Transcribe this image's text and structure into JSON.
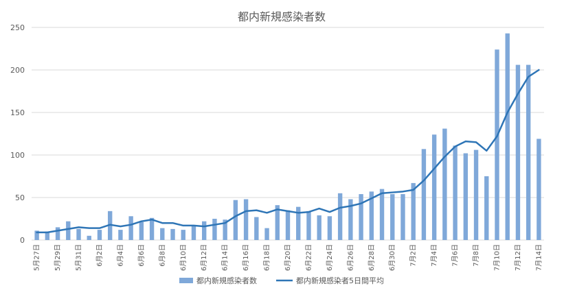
{
  "chart_data": {
    "type": "bar+line",
    "title": "都内新規感染者数",
    "ylim": [
      0,
      250
    ],
    "y_ticks": [
      0,
      50,
      100,
      150,
      200,
      250
    ],
    "grid": true,
    "legend_position": "bottom",
    "categories": [
      "5月27日",
      "5月28日",
      "5月29日",
      "5月30日",
      "5月31日",
      "6月1日",
      "6月2日",
      "6月3日",
      "6月4日",
      "6月5日",
      "6月6日",
      "6月7日",
      "6月8日",
      "6月9日",
      "6月10日",
      "6月11日",
      "6月12日",
      "6月13日",
      "6月14日",
      "6月15日",
      "6月16日",
      "6月17日",
      "6月18日",
      "6月19日",
      "6月20日",
      "6月21日",
      "6月22日",
      "6月23日",
      "6月24日",
      "6月25日",
      "6月26日",
      "6月27日",
      "6月28日",
      "6月29日",
      "6月30日",
      "7月1日",
      "7月2日",
      "7月3日",
      "7月4日",
      "7月5日",
      "7月6日",
      "7月7日",
      "7月8日",
      "7月9日",
      "7月10日",
      "7月11日",
      "7月12日",
      "7月13日",
      "7月14日"
    ],
    "x_tick_labels": [
      "5月27日",
      "5月29日",
      "5月31日",
      "6月2日",
      "6月4日",
      "6月6日",
      "6月8日",
      "6月10日",
      "6月12日",
      "6月14日",
      "6月16日",
      "6月18日",
      "6月20日",
      "6月22日",
      "6月24日",
      "6月26日",
      "6月28日",
      "6月30日",
      "7月2日",
      "7月4日",
      "7月6日",
      "7月8日",
      "7月10日",
      "7月12日",
      "7月14日"
    ],
    "series": [
      {
        "name": "都内新規感染者数",
        "kind": "bar",
        "color": "#7fa8d9",
        "values": [
          11,
          10,
          15,
          22,
          13,
          5,
          12,
          34,
          12,
          28,
          21,
          26,
          14,
          13,
          12,
          17,
          22,
          25,
          24,
          47,
          48,
          27,
          14,
          41,
          35,
          39,
          34,
          29,
          28,
          55,
          48,
          54,
          57,
          60,
          54,
          54,
          67,
          107,
          124,
          131,
          111,
          102,
          106,
          75,
          224,
          243,
          206,
          206,
          119
        ]
      },
      {
        "name": "都内新規感染者5日間平均",
        "kind": "line",
        "color": "#2e75b6",
        "values": [
          9,
          9,
          11,
          13,
          15,
          14,
          14,
          18,
          16,
          18,
          22,
          24,
          20,
          20,
          17,
          17,
          16,
          18,
          20,
          28,
          34,
          35,
          32,
          36,
          34,
          32,
          33,
          37,
          33,
          38,
          40,
          43,
          49,
          55,
          56,
          57,
          59,
          70,
          84,
          98,
          110,
          116,
          115,
          105,
          122,
          150,
          172,
          192,
          200
        ]
      }
    ]
  }
}
